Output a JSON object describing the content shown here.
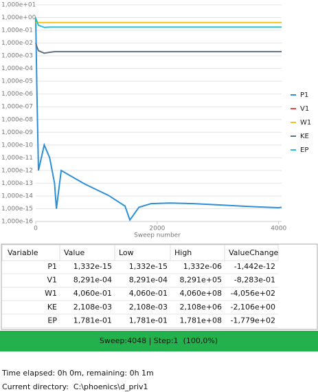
{
  "chart_data": {
    "type": "line",
    "log_y": true,
    "grid": true,
    "legend": "right",
    "x_label": "Sweep number",
    "x": [
      0,
      20,
      45,
      140,
      230,
      310,
      340,
      420,
      800,
      1200,
      1470,
      1550,
      1700,
      1900,
      2200,
      2600,
      3000,
      3400,
      3800,
      4000,
      4048
    ],
    "xlim": [
      0,
      4048
    ],
    "xticks": [
      0,
      2000,
      4000
    ],
    "ylim": [
      1e-16,
      10
    ],
    "yticks": [
      {
        "value": 1e-16,
        "label": "1,000e-16"
      },
      {
        "value": 1e-15,
        "label": "1,000e-15"
      },
      {
        "value": 1e-14,
        "label": "1,000e-14"
      },
      {
        "value": 1e-13,
        "label": "1,000e-13"
      },
      {
        "value": 1e-12,
        "label": "1,000e-12"
      },
      {
        "value": 1e-11,
        "label": "1,000e-11"
      },
      {
        "value": 1e-10,
        "label": "1,000e-10"
      },
      {
        "value": 1e-09,
        "label": "1,000e-09"
      },
      {
        "value": 1e-08,
        "label": "1,000e-08"
      },
      {
        "value": 1e-07,
        "label": "1,000e-07"
      },
      {
        "value": 1e-06,
        "label": "1,000e-06"
      },
      {
        "value": 1e-05,
        "label": "1,000e-05"
      },
      {
        "value": 0.0001,
        "label": "1,000e-04"
      },
      {
        "value": 0.001,
        "label": "1,000e-03"
      },
      {
        "value": 0.01,
        "label": "1,000e-02"
      },
      {
        "value": 0.1,
        "label": "1,000e-01"
      },
      {
        "value": 1,
        "label": "1,000e+00"
      },
      {
        "value": 10,
        "label": "1,000e+01"
      }
    ],
    "series": [
      {
        "name": "P1",
        "color": "#2b8fd8",
        "values": [
          1,
          1e-06,
          1e-12,
          1e-10,
          1e-11,
          1e-13,
          1e-15,
          1e-12,
          9e-14,
          1.1e-14,
          1.6e-15,
          1.3e-16,
          1.3e-15,
          2.5e-15,
          2.8e-15,
          2.5e-15,
          2e-15,
          1.6e-15,
          1.3e-15,
          1.2e-15,
          1.3e-15
        ]
      },
      {
        "name": "V1",
        "color": "#e8403a",
        "values": [
          null,
          null,
          null,
          null,
          null,
          null,
          null,
          null,
          null,
          null,
          null,
          null,
          null,
          null,
          null,
          null,
          null,
          null,
          null,
          null,
          null
        ]
      },
      {
        "name": "W1",
        "color": "#f2c218",
        "values": [
          0.406,
          0.406,
          0.406,
          0.406,
          0.406,
          0.406,
          0.406,
          0.406,
          0.406,
          0.406,
          0.406,
          0.406,
          0.406,
          0.406,
          0.406,
          0.406,
          0.406,
          0.406,
          0.406,
          0.406,
          0.406
        ]
      },
      {
        "name": "KE",
        "color": "#5f7080",
        "values": [
          0.01,
          0.005,
          0.0025,
          0.0016,
          0.0019,
          0.0021,
          0.0021,
          0.0021,
          0.0021,
          0.0021,
          0.0021,
          0.0021,
          0.0021,
          0.0021,
          0.0021,
          0.0021,
          0.0021,
          0.0021,
          0.0021,
          0.0021,
          0.0021
        ]
      },
      {
        "name": "EP",
        "color": "#1fc4d2",
        "values": [
          0.9,
          0.5,
          0.25,
          0.17,
          0.178,
          0.178,
          0.178,
          0.178,
          0.178,
          0.178,
          0.178,
          0.178,
          0.178,
          0.178,
          0.178,
          0.178,
          0.178,
          0.178,
          0.178,
          0.178,
          0.178
        ]
      }
    ]
  },
  "table": {
    "columns": [
      "Variable",
      "Value",
      "Low",
      "High",
      "ValueChange"
    ],
    "rows": [
      [
        "P1",
        "1,332e-15",
        "1,332e-15",
        "1,332e-06",
        "-1,442e-12"
      ],
      [
        "V1",
        "8,291e-04",
        "8,291e-04",
        "8,291e+05",
        "-8,283e-01"
      ],
      [
        "W1",
        "4,060e-01",
        "4,060e-01",
        "4,060e+08",
        "-4,056e+02"
      ],
      [
        "KE",
        "2,108e-03",
        "2,108e-03",
        "2,108e+06",
        "-2,106e+00"
      ],
      [
        "EP",
        "1,781e-01",
        "1,781e-01",
        "1,781e+08",
        "-1,779e+02"
      ]
    ]
  },
  "status": "Sweep:4048 | Step:1  (100,0%)",
  "footer": {
    "time": "Time elapsed: 0h 0m, remaining: 0h 1m",
    "directory": "Current directory:  C:\\phoenics\\d_priv1"
  }
}
